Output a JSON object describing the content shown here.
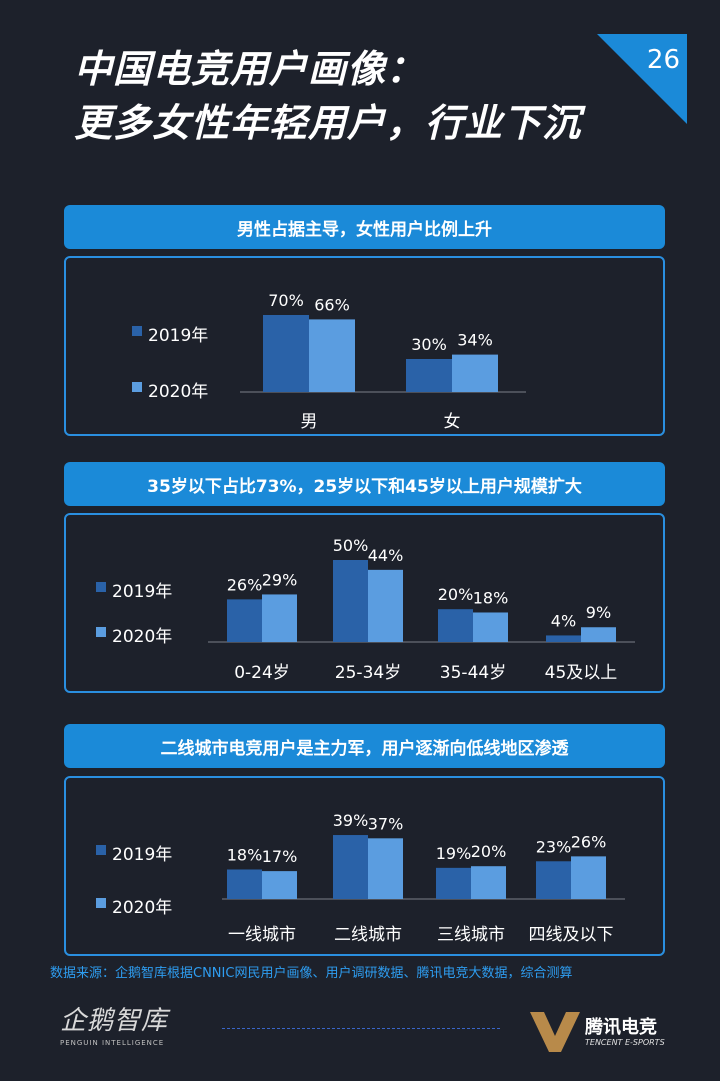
{
  "header": {
    "title_line1": "中国电竞用户画像：",
    "title_line2": "更多女性年轻用户，行业下沉",
    "page_number": "26"
  },
  "sections": [
    {
      "banner": "男性占据主导，女性用户比例上升"
    },
    {
      "banner": "35岁以下占比73%，25岁以下和45岁以上用户规模扩大"
    },
    {
      "banner": "二线城市电竞用户是主力军，用户逐渐向低线地区渗透"
    }
  ],
  "colors": {
    "series_2019": "#2a62a8",
    "series_2020": "#5b9de0",
    "accent": "#1b8ad8",
    "background": "#1d212b"
  },
  "chart_data": [
    {
      "type": "bar",
      "categories": [
        "男",
        "女"
      ],
      "series": [
        {
          "name": "2019年",
          "values": [
            70,
            30
          ],
          "labels": [
            "70%",
            "30%"
          ]
        },
        {
          "name": "2020年",
          "values": [
            66,
            34
          ],
          "labels": [
            "66%",
            "34%"
          ]
        }
      ],
      "ylim": [
        0,
        100
      ],
      "legend": "left"
    },
    {
      "type": "bar",
      "categories": [
        "0-24岁",
        "25-34岁",
        "35-44岁",
        "45及以上"
      ],
      "series": [
        {
          "name": "2019年",
          "values": [
            26,
            50,
            20,
            4
          ],
          "labels": [
            "26%",
            "50%",
            "20%",
            "4%"
          ]
        },
        {
          "name": "2020年",
          "values": [
            29,
            44,
            18,
            9
          ],
          "labels": [
            "29%",
            "44%",
            "18%",
            "9%"
          ]
        }
      ],
      "ylim": [
        0,
        100
      ],
      "legend": "left"
    },
    {
      "type": "bar",
      "categories": [
        "一线城市",
        "二线城市",
        "三线城市",
        "四线及以下"
      ],
      "series": [
        {
          "name": "2019年",
          "values": [
            18,
            39,
            19,
            23
          ],
          "labels": [
            "18%",
            "39%",
            "19%",
            "23%"
          ]
        },
        {
          "name": "2020年",
          "values": [
            17,
            37,
            20,
            26
          ],
          "labels": [
            "17%",
            "37%",
            "20%",
            "26%"
          ]
        }
      ],
      "ylim": [
        0,
        100
      ],
      "legend": "left"
    }
  ],
  "footer": {
    "source": "数据来源：企鹅智库根据CNNIC网民用户画像、用户调研数据、腾讯电竞大数据，综合测算",
    "logo_left_name": "企鹅智库",
    "logo_left_sub": "PENGUIN INTELLIGENCE",
    "logo_right_name": "腾讯电竞",
    "logo_right_sub": "TENCENT E-SPORTS"
  }
}
